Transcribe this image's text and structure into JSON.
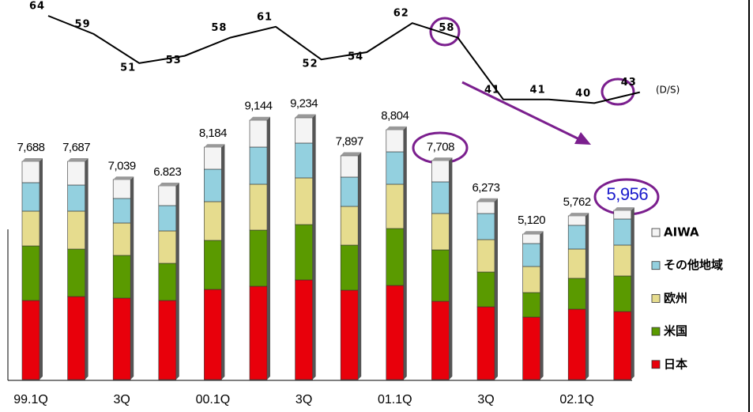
{
  "chart_data": {
    "type": "bar",
    "categories": [
      "99.1Q",
      null,
      "3Q",
      null,
      "00.1Q",
      null,
      "3Q",
      null,
      "01.1Q",
      null,
      "3Q",
      null,
      "02.1Q",
      null
    ],
    "series": [
      {
        "name": "日本",
        "color": "#e8000b",
        "values": [
          2786,
          2925,
          2870,
          2786,
          3176,
          3287,
          3510,
          3148,
          3315,
          2758,
          2563,
          2201,
          2480,
          2396
        ]
      },
      {
        "name": "米国",
        "color": "#5a9a00",
        "values": [
          1922,
          1672,
          1504,
          1309,
          1727,
          1978,
          1950,
          1588,
          2006,
          1811,
          1226,
          864,
          1087,
          1254
        ]
      },
      {
        "name": "欧州",
        "color": "#e6dc8e",
        "values": [
          1226,
          1337,
          1142,
          1142,
          1365,
          1616,
          1644,
          1365,
          1560,
          1282,
          1142,
          919,
          1031,
          1087
        ]
      },
      {
        "name": "その他地域",
        "color": "#93d0df",
        "values": [
          1003,
          919,
          864,
          892,
          1142,
          1309,
          1226,
          1031,
          1142,
          1114,
          919,
          808,
          836,
          919
        ]
      },
      {
        "name": "AIWA",
        "color": "#f4f4f4",
        "values": [
          752,
          836,
          669,
          697,
          780,
          947,
          891,
          752,
          780,
          752,
          418,
          334,
          334,
          306
        ]
      }
    ],
    "totals": {
      "values": [
        7688,
        7687,
        7039,
        6823,
        8184,
        9144,
        9234,
        7897,
        8804,
        7708,
        6273,
        5120,
        5762,
        5956
      ],
      "value_labels": [
        "7,688",
        "7,687",
        "7,039",
        "6.823",
        "8,184",
        "9,144",
        "9,234",
        "7,897",
        "8,804",
        "7,708",
        "6,273",
        "5,120",
        "5,762",
        "5,956"
      ]
    },
    "line": {
      "name": "(D/S)",
      "color": "#000000",
      "values": [
        64,
        59,
        51,
        53,
        58,
        61,
        52,
        54,
        62,
        58,
        41,
        41,
        40,
        43
      ]
    }
  }
}
